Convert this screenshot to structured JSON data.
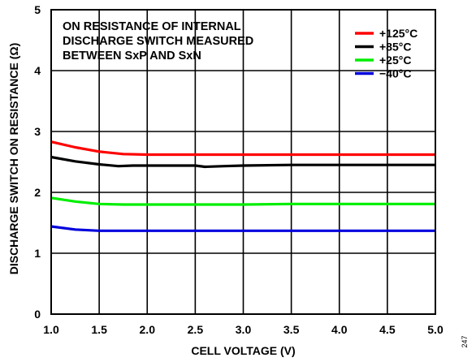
{
  "chart_data": {
    "type": "line",
    "title": "",
    "xlabel": "CELL VOLTAGE (V)",
    "ylabel": "DISCHARGE SWITCH ON RESISTANCE (Ω)",
    "xlim": [
      1.0,
      5.0
    ],
    "ylim": [
      0,
      5
    ],
    "x_ticks": [
      "1.0",
      "1.5",
      "2.0",
      "2.5",
      "3.0",
      "3.5",
      "4.0",
      "4.5",
      "5.0"
    ],
    "y_ticks": [
      "0",
      "1",
      "2",
      "3",
      "4",
      "5"
    ],
    "grid": true,
    "legend_position": "top-right",
    "annotation_lines": [
      "ON RESISTANCE OF INTERNAL",
      "DISCHARGE SWITCH MEASURED",
      "BETWEEN SxP AND SxN"
    ],
    "figure_number": "247",
    "series": [
      {
        "name": "+125°C",
        "color": "#ff0000",
        "x": [
          1.0,
          1.25,
          1.5,
          1.75,
          2.0,
          2.5,
          3.0,
          3.5,
          4.0,
          4.5,
          5.0
        ],
        "y": [
          2.83,
          2.74,
          2.67,
          2.63,
          2.62,
          2.62,
          2.62,
          2.62,
          2.62,
          2.62,
          2.62
        ]
      },
      {
        "name": "+85°C",
        "color": "#000000",
        "x": [
          1.0,
          1.25,
          1.5,
          1.7,
          1.85,
          2.0,
          2.25,
          2.5,
          2.6,
          2.8,
          3.0,
          3.5,
          4.0,
          4.5,
          5.0
        ],
        "y": [
          2.58,
          2.51,
          2.46,
          2.43,
          2.44,
          2.44,
          2.44,
          2.44,
          2.42,
          2.43,
          2.44,
          2.45,
          2.45,
          2.45,
          2.45
        ]
      },
      {
        "name": "+25°C",
        "color": "#00ee00",
        "x": [
          1.0,
          1.25,
          1.5,
          1.75,
          2.0,
          2.5,
          3.0,
          3.5,
          4.0,
          4.5,
          5.0
        ],
        "y": [
          1.91,
          1.85,
          1.81,
          1.8,
          1.8,
          1.8,
          1.8,
          1.81,
          1.81,
          1.81,
          1.81
        ]
      },
      {
        "name": "−40°C",
        "color": "#0000dd",
        "x": [
          1.0,
          1.25,
          1.5,
          1.75,
          2.0,
          2.5,
          3.0,
          3.5,
          4.0,
          4.5,
          5.0
        ],
        "y": [
          1.44,
          1.39,
          1.37,
          1.37,
          1.37,
          1.37,
          1.37,
          1.37,
          1.37,
          1.37,
          1.37
        ]
      }
    ]
  }
}
